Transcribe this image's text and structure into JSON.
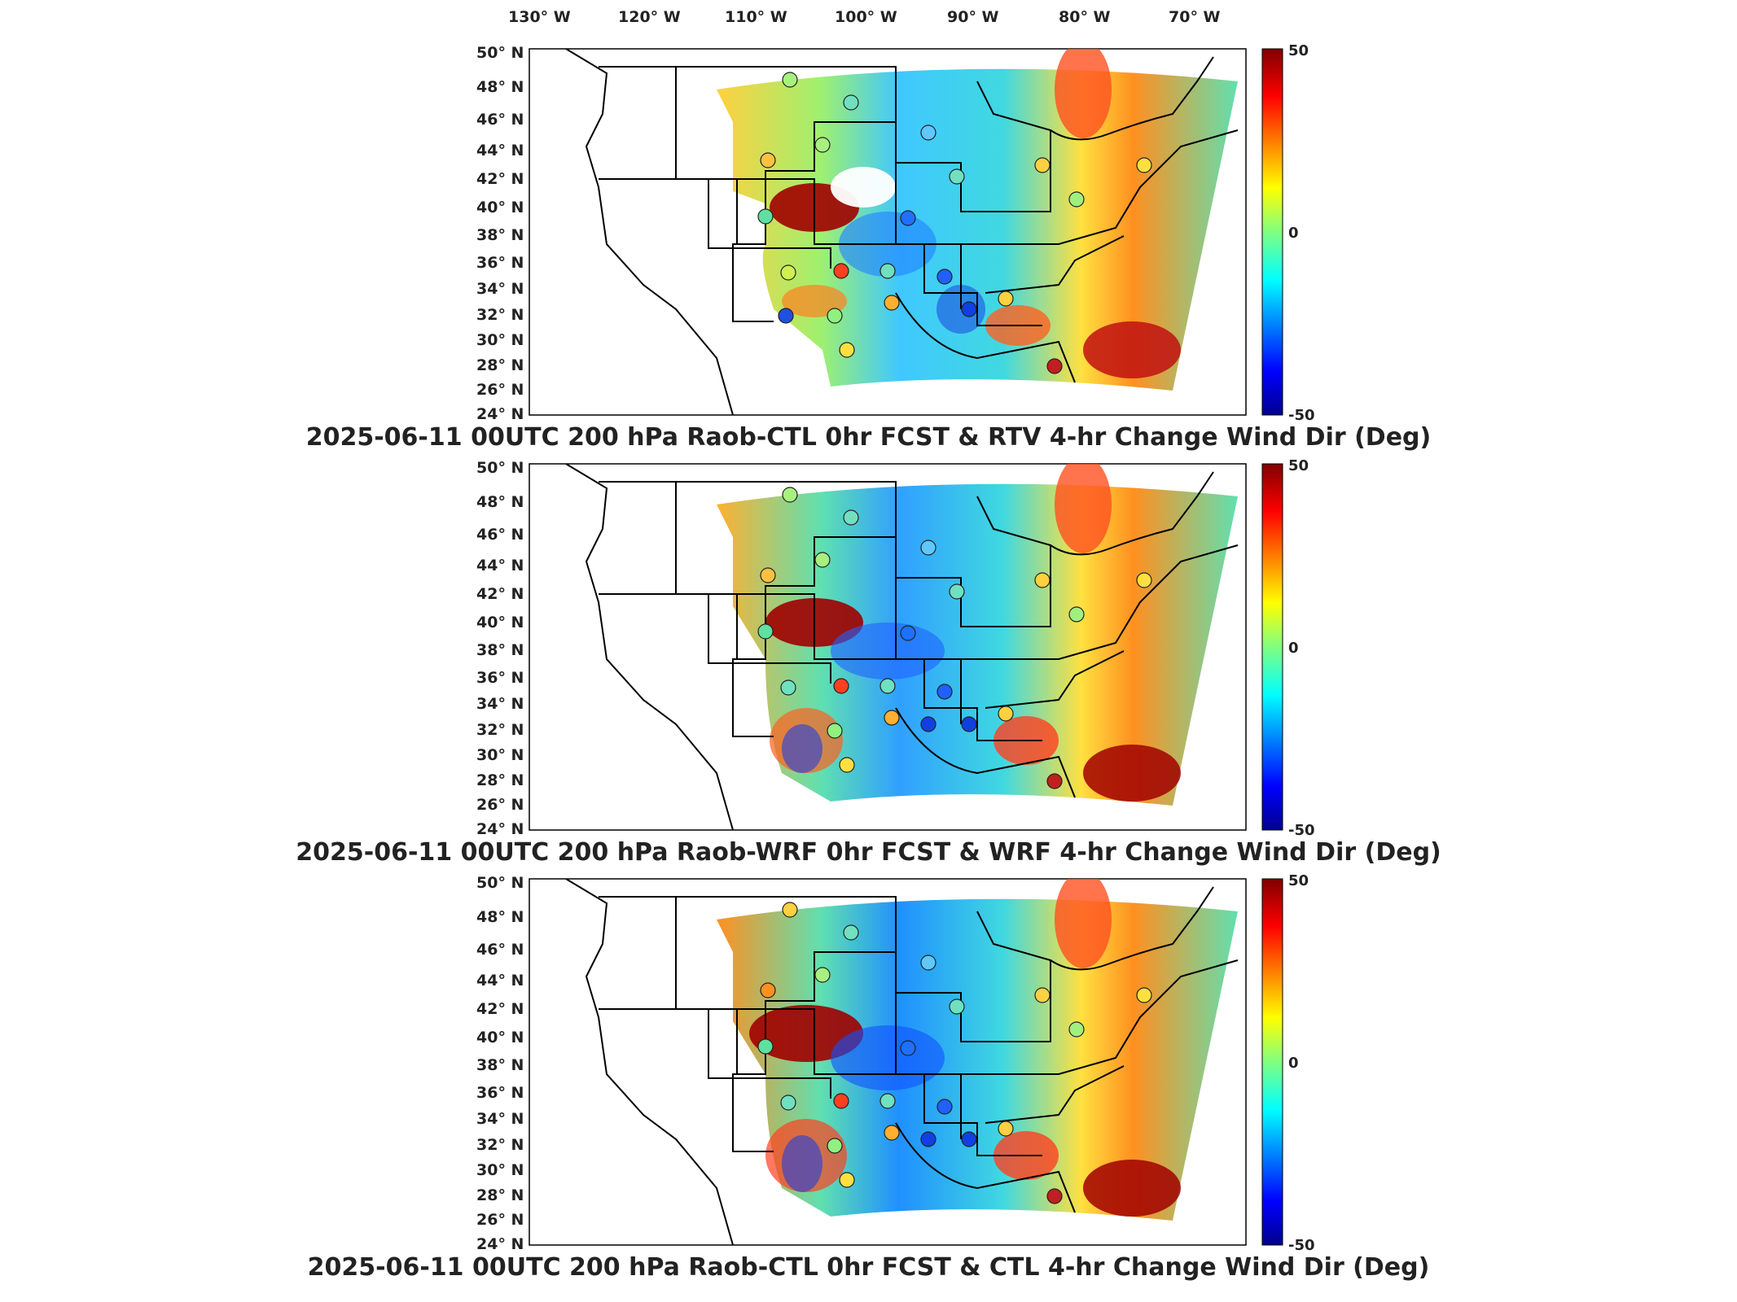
{
  "longitude_labels": [
    "130° W",
    "120° W",
    "110° W",
    "100° W",
    "90° W",
    "80° W",
    "70° W"
  ],
  "latitude_labels": [
    "50° N",
    "48° N",
    "46° N",
    "44° N",
    "42° N",
    "40° N",
    "38° N",
    "36° N",
    "34° N",
    "32° N",
    "30° N",
    "28° N",
    "26° N",
    "24° N"
  ],
  "colorbar": {
    "max": "50",
    "mid": "0",
    "min": "-50",
    "colors": [
      "#00008f",
      "#0000ff",
      "#0080ff",
      "#00ffff",
      "#80ff80",
      "#ffff00",
      "#ff8000",
      "#ff0000",
      "#800000"
    ]
  },
  "panels": [
    {
      "title": "2025-06-11 00UTC 200 hPa Raob-CTL 0hr FCST & RTV 4-hr Change Wind Dir (Deg)"
    },
    {
      "title": "2025-06-11 00UTC 200 hPa Raob-WRF 0hr FCST & WRF 4-hr Change Wind Dir (Deg)"
    },
    {
      "title": "2025-06-11 00UTC 200 hPa Raob-CTL 0hr FCST & CTL 4-hr Change Wind Dir (Deg)"
    }
  ],
  "colors": {
    "map_border": "#000000",
    "state_lines": "#000000",
    "background": "#ffffff"
  }
}
